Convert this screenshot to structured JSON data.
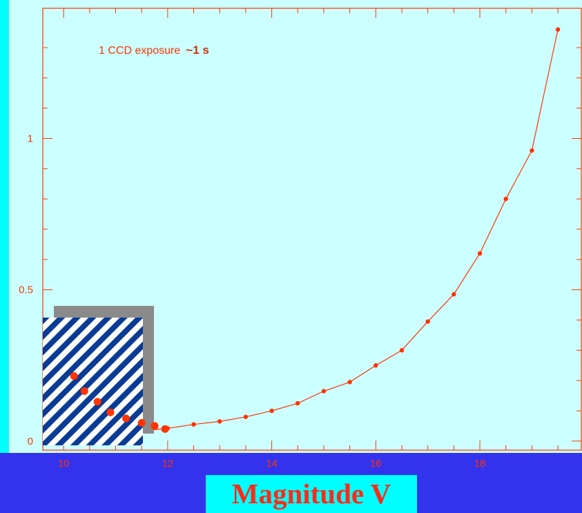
{
  "chart_data": {
    "type": "line",
    "title": "",
    "annotation": {
      "text": "1 CCD exposure",
      "emphasis": "~1 s"
    },
    "xlabel": "Magnitude V",
    "ylabel": "",
    "xlim": [
      9.6,
      19.95
    ],
    "ylim": [
      -0.03,
      1.43
    ],
    "x_ticks": [
      10,
      12,
      14,
      16,
      18
    ],
    "y_ticks": [
      0,
      0.5,
      1
    ],
    "y_tick_labels": [
      "0",
      "0.5",
      "1"
    ],
    "grid": false,
    "series": [
      {
        "x": [
          11.6,
          12.0,
          12.5,
          13.0,
          13.5,
          14.0,
          14.5,
          15.0,
          15.5,
          16.0,
          16.5,
          17.0,
          17.5,
          18.0,
          18.5,
          19.0,
          19.5
        ],
        "y": [
          0.035,
          0.042,
          0.055,
          0.065,
          0.08,
          0.1,
          0.125,
          0.165,
          0.195,
          0.25,
          0.3,
          0.395,
          0.485,
          0.62,
          0.8,
          0.96,
          1.36
        ]
      }
    ],
    "inset_points": {
      "x": [
        10.2,
        10.4,
        10.65,
        10.9,
        11.2,
        11.5,
        11.75,
        11.95
      ],
      "y": [
        0.215,
        0.165,
        0.13,
        0.095,
        0.075,
        0.06,
        0.05,
        0.04
      ]
    }
  },
  "colors": {
    "plot_background": "#ccffff",
    "page_background": "#3333ee",
    "curve": "#ff3300",
    "axis": "#ff3300",
    "tick_label": "#ff3300",
    "annotation_emphasis": "#cc3300",
    "xlabel": "#ff2a1a",
    "xlabel_box": "#00ffff",
    "inset_stripes": "#0a3c96",
    "inset_shadow": "#8a8a8a"
  }
}
